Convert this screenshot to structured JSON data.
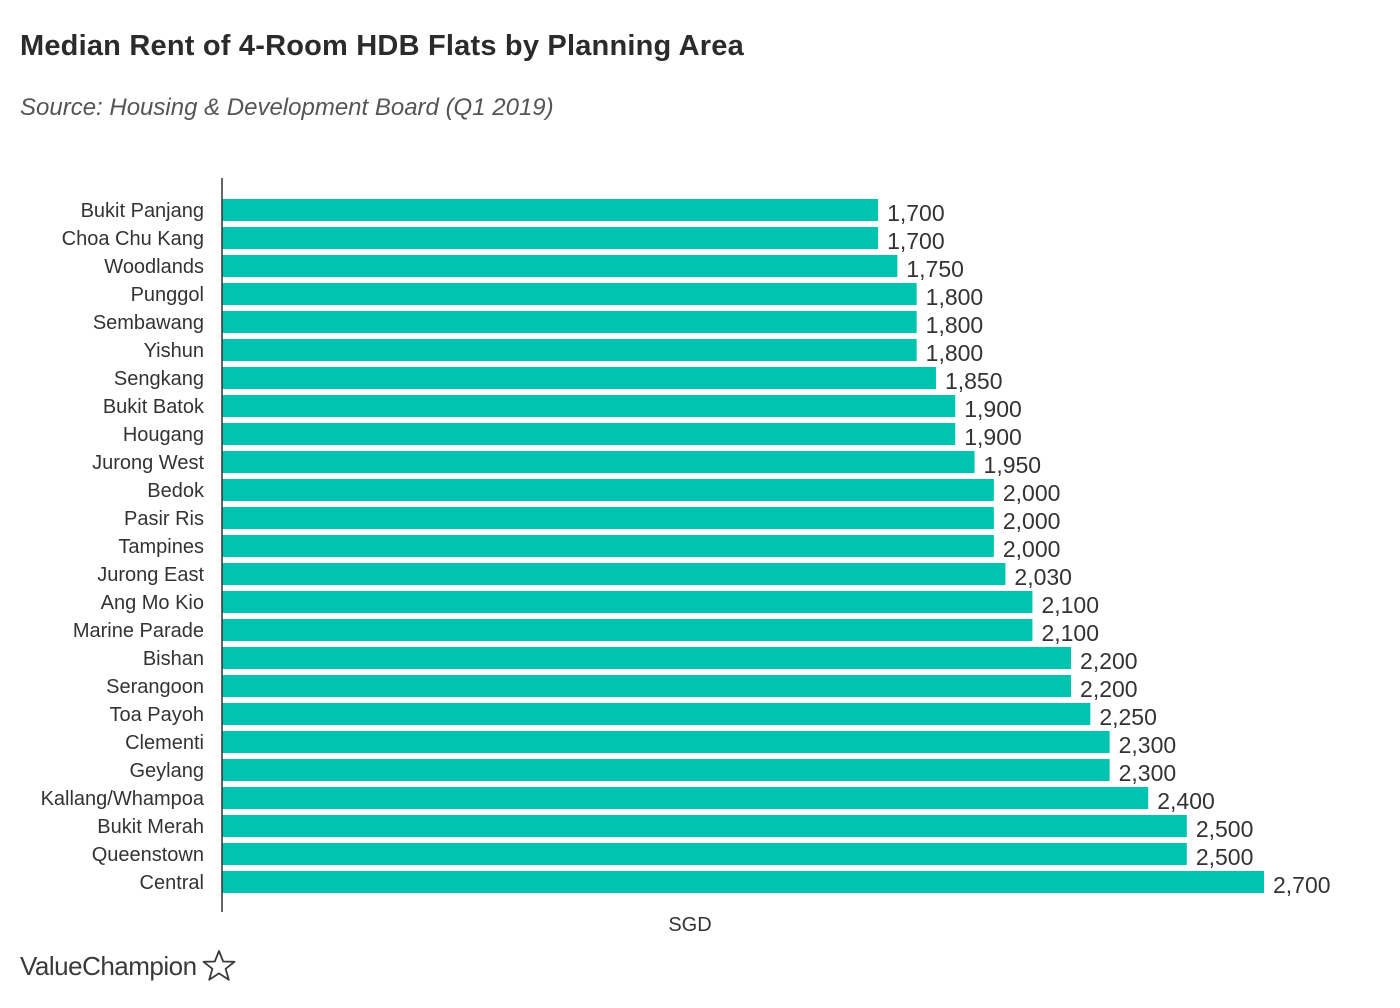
{
  "header": {
    "title": "Median Rent of 4-Room HDB Flats by Planning Area",
    "subtitle": "Source: Housing & Development Board (Q1 2019)"
  },
  "brand": {
    "logo_text": "ValueChampion",
    "logo_icon": "star-outline-icon"
  },
  "colors": {
    "bar": "#00C4B0",
    "text": "#333333",
    "axis": "#333333"
  },
  "chart_data": {
    "type": "bar",
    "orientation": "horizontal",
    "title": "Median Rent of 4-Room HDB Flats by Planning Area",
    "subtitle": "Source: Housing & Development Board (Q1 2019)",
    "xlabel": "SGD",
    "ylabel": "",
    "xlim": [
      0,
      2700
    ],
    "grid": false,
    "legend": "none",
    "categories": [
      "Bukit Panjang",
      "Choa Chu Kang",
      "Woodlands",
      "Punggol",
      "Sembawang",
      "Yishun",
      "Sengkang",
      "Bukit Batok",
      "Hougang",
      "Jurong West",
      "Bedok",
      "Pasir Ris",
      "Tampines",
      "Jurong East",
      "Ang Mo Kio",
      "Marine Parade",
      "Bishan",
      "Serangoon",
      "Toa Payoh",
      "Clementi",
      "Geylang",
      "Kallang/Whampoa",
      "Bukit Merah",
      "Queenstown",
      "Central"
    ],
    "values": [
      1700,
      1700,
      1750,
      1800,
      1800,
      1800,
      1850,
      1900,
      1900,
      1950,
      2000,
      2000,
      2000,
      2030,
      2100,
      2100,
      2200,
      2200,
      2250,
      2300,
      2300,
      2400,
      2500,
      2500,
      2700
    ],
    "value_labels": [
      "1,700",
      "1,700",
      "1,750",
      "1,800",
      "1,800",
      "1,800",
      "1,850",
      "1,900",
      "1,900",
      "1,950",
      "2,000",
      "2,000",
      "2,000",
      "2,030",
      "2,100",
      "2,100",
      "2,200",
      "2,200",
      "2,250",
      "2,300",
      "2,300",
      "2,400",
      "2,500",
      "2,500",
      "2,700"
    ]
  }
}
